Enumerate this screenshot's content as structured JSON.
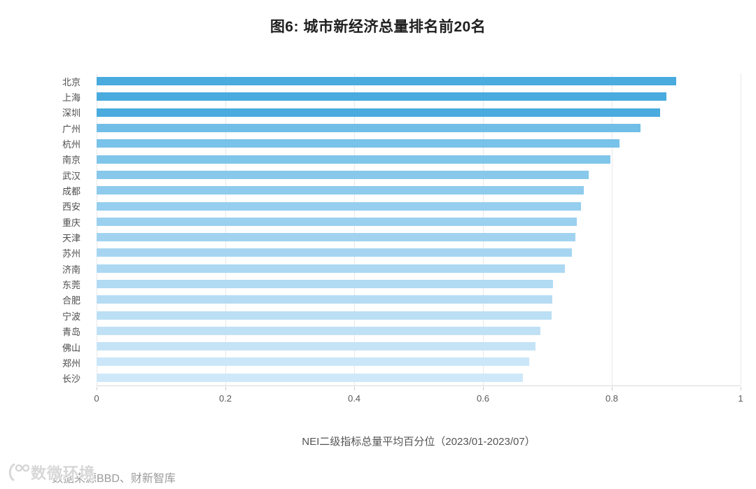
{
  "title": "图6: 城市新经济总量排名前20名",
  "chart_data": {
    "type": "bar",
    "orientation": "horizontal",
    "title": "图6: 城市新经济总量排名前20名",
    "categories": [
      "北京",
      "上海",
      "深圳",
      "广州",
      "杭州",
      "南京",
      "武汉",
      "成都",
      "西安",
      "重庆",
      "天津",
      "苏州",
      "济南",
      "东莞",
      "合肥",
      "宁波",
      "青岛",
      "佛山",
      "郑州",
      "长沙"
    ],
    "values": [
      0.9,
      0.885,
      0.875,
      0.845,
      0.812,
      0.798,
      0.764,
      0.756,
      0.752,
      0.746,
      0.744,
      0.738,
      0.727,
      0.709,
      0.708,
      0.707,
      0.689,
      0.682,
      0.672,
      0.662
    ],
    "bar_colors": [
      "#49ABDE",
      "#49ABDE",
      "#49ABDE",
      "#70BEE7",
      "#79C2E9",
      "#80C5EA",
      "#88C8EB",
      "#8FCBEC",
      "#95CEEE",
      "#9BD0EF",
      "#A1D3F0",
      "#A6D5F1",
      "#ACD8F2",
      "#B1DAF3",
      "#B6DCF3",
      "#BBDFF4",
      "#C0E1F5",
      "#C5E3F6",
      "#CAE6F8",
      "#CFE8F9"
    ],
    "xlabel": "NEI二级指标总量平均百分位（2023/01-2023/07）",
    "ylabel": "",
    "xlim": [
      0,
      1
    ],
    "x_ticks": [
      0,
      0.2,
      0.4,
      0.6,
      0.8,
      1
    ],
    "x_tick_labels": [
      "0",
      "0.2",
      "0.4",
      "0.6",
      "0.8",
      "1"
    ],
    "grid": "vertical-light",
    "legend": "none"
  },
  "footer": {
    "source": "数据来源BBD、财新智库",
    "watermark_text": "数微环境"
  },
  "colors": {
    "axis_line": "#d9d9d9",
    "gridline": "#e8e8e8",
    "tick_label": "#595959",
    "category_label": "#4d4d4d",
    "title_text": "#1f1f1f",
    "source_text": "#9b9b9b",
    "watermark": "#d7d7d7"
  }
}
